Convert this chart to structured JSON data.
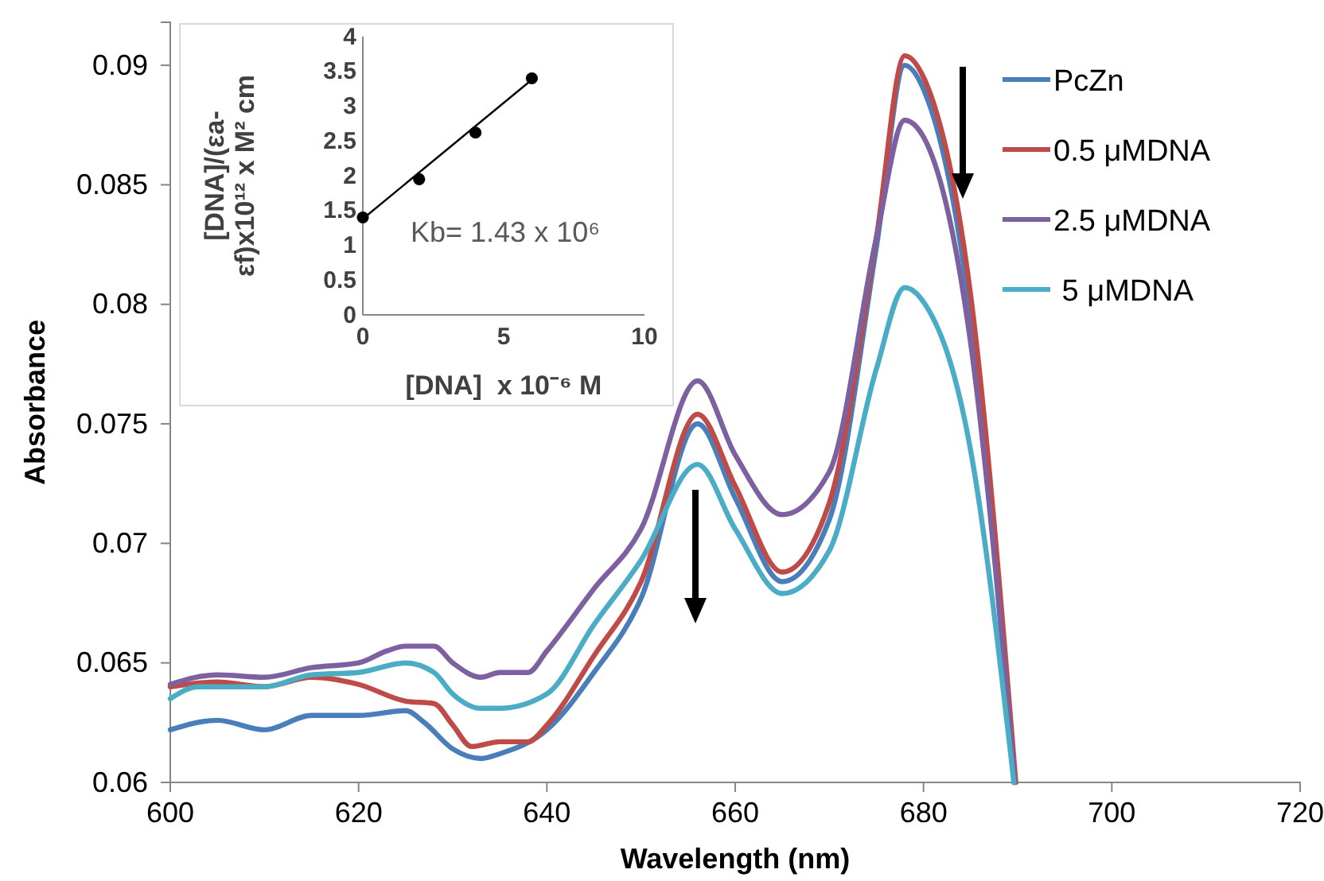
{
  "chart_data": [
    {
      "type": "line",
      "xlabel": "Wavelength (nm)",
      "ylabel": "Absorbance",
      "xlim": [
        600,
        720
      ],
      "xticks": [
        600,
        620,
        640,
        660,
        680,
        700,
        720
      ],
      "ylim": [
        0.06,
        0.0918
      ],
      "yticks": [
        {
          "value": 0.06,
          "label": "0.06"
        },
        {
          "value": 0.065,
          "label": "0.065"
        },
        {
          "value": 0.07,
          "label": "0.07"
        },
        {
          "value": 0.075,
          "label": "0.075"
        },
        {
          "value": 0.08,
          "label": "0.08"
        },
        {
          "value": 0.085,
          "label": "0.085"
        },
        {
          "value": 0.09,
          "label": "0.09"
        }
      ],
      "grid": false,
      "legend": "right",
      "series": [
        {
          "name": "PcZn",
          "color": "#4a7ebb",
          "x": [
            600,
            605,
            610,
            615,
            620,
            625,
            627,
            630,
            633,
            635,
            640,
            645,
            650,
            656,
            660,
            665,
            670,
            675,
            678,
            680,
            685,
            689.6
          ],
          "values": [
            0.0622,
            0.0626,
            0.0622,
            0.0628,
            0.0628,
            0.063,
            0.0625,
            0.0614,
            0.061,
            0.0612,
            0.0622,
            0.0646,
            0.0677,
            0.075,
            0.0719,
            0.0684,
            0.071,
            0.0824,
            0.09,
            0.089,
            0.0795,
            0.06
          ]
        },
        {
          "name": "0.5 μMDNA",
          "color": "#be4b48",
          "x": [
            600,
            605,
            610,
            615,
            620,
            625,
            628,
            630,
            632,
            635,
            638,
            640,
            645,
            650,
            656,
            660,
            665,
            670,
            675,
            678,
            680,
            685,
            689.8
          ],
          "values": [
            0.064,
            0.0642,
            0.064,
            0.0644,
            0.0641,
            0.0634,
            0.0633,
            0.0624,
            0.0615,
            0.0617,
            0.0617,
            0.0624,
            0.0653,
            0.0684,
            0.0754,
            0.0724,
            0.0688,
            0.0717,
            0.0828,
            0.0904,
            0.0895,
            0.0804,
            0.06
          ]
        },
        {
          "name": "2.5 μMDNA",
          "color": "#7d60a0",
          "x": [
            600,
            605,
            610,
            615,
            620,
            623,
            625,
            628,
            630,
            633,
            635,
            638,
            640,
            645,
            650,
            656,
            660,
            665,
            670,
            675,
            678,
            680,
            685,
            689.7
          ],
          "values": [
            0.0641,
            0.0645,
            0.0644,
            0.0648,
            0.065,
            0.0655,
            0.0657,
            0.0657,
            0.065,
            0.0644,
            0.0646,
            0.0646,
            0.0655,
            0.0681,
            0.0706,
            0.0768,
            0.0737,
            0.0712,
            0.073,
            0.0828,
            0.0877,
            0.087,
            0.0784,
            0.06
          ]
        },
        {
          "name": " 5 μMDNA",
          "color": "#4bacc6",
          "x": [
            600,
            603,
            605,
            610,
            615,
            620,
            625,
            628,
            630,
            633,
            635,
            640,
            645,
            650,
            656,
            660,
            665,
            670,
            675,
            678,
            680,
            685,
            689.6
          ],
          "values": [
            0.0635,
            0.064,
            0.064,
            0.064,
            0.0645,
            0.0646,
            0.065,
            0.0646,
            0.0637,
            0.0631,
            0.0631,
            0.0637,
            0.0666,
            0.0693,
            0.0733,
            0.0706,
            0.0679,
            0.0697,
            0.0773,
            0.0807,
            0.0801,
            0.0739,
            0.06
          ]
        }
      ]
    },
    {
      "type": "scatter",
      "xlabel": "[DNA]  x 10⁻⁶ M",
      "ylabel": "[DNA]/(εa-εf)x10¹² x M² cm",
      "xlim": [
        0,
        10
      ],
      "xticks": [
        0,
        5,
        10
      ],
      "ylim": [
        0,
        4
      ],
      "yticks": [
        0,
        0.5,
        1,
        1.5,
        2,
        2.5,
        3,
        3.5,
        4
      ],
      "grid": false,
      "annotations": [
        "Kb= 1.43 x 10⁶"
      ],
      "series": [
        {
          "marker": "circle",
          "color": "#000000",
          "x": [
            0,
            2,
            4,
            6
          ],
          "values": [
            1.4,
            1.95,
            2.62,
            3.4
          ]
        },
        {
          "type": "line",
          "marker": "none",
          "color": "#000000",
          "x": [
            0,
            6
          ],
          "values": [
            1.38,
            3.38
          ]
        }
      ]
    }
  ]
}
